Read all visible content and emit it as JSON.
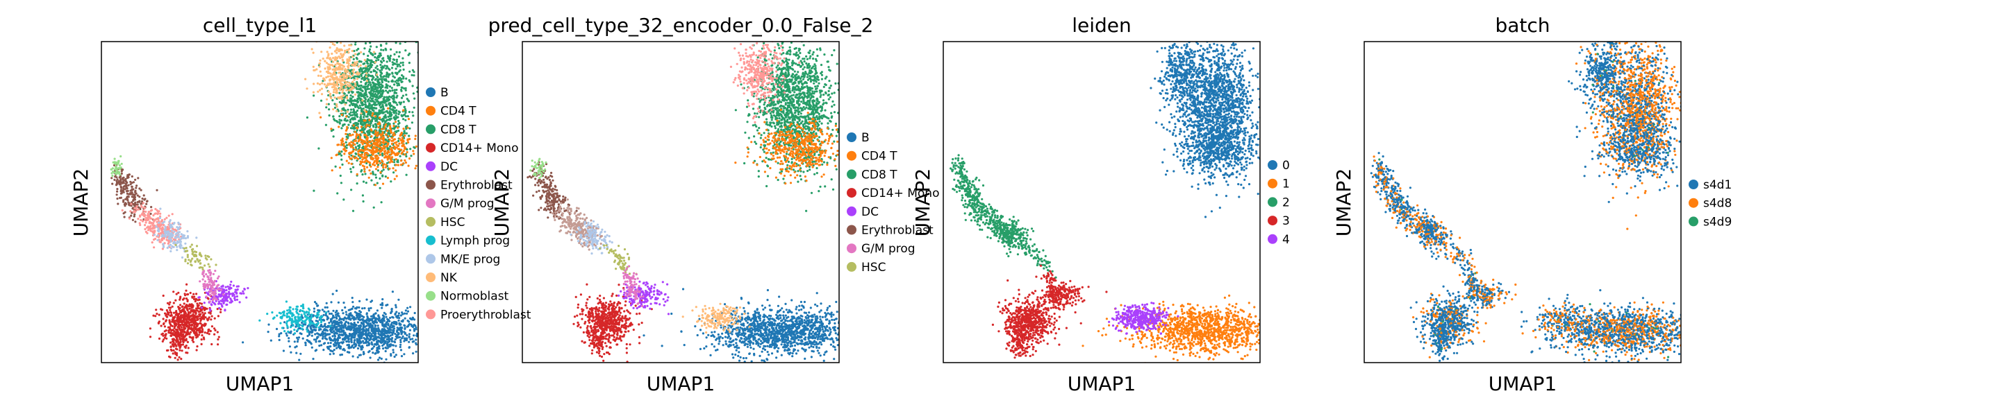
{
  "xlabel": "UMAP1",
  "ylabel": "UMAP2",
  "chart_data": [
    {
      "type": "scatter",
      "title": "cell_type_l1",
      "xlabel": "UMAP1",
      "ylabel": "UMAP2",
      "grid": false,
      "legend_position": "right",
      "x_ticks": [],
      "y_ticks": [],
      "series": [
        {
          "name": "B",
          "color": "#1f77b4"
        },
        {
          "name": "CD4 T",
          "color": "#ff7f0e"
        },
        {
          "name": "CD8 T",
          "color": "#279e68"
        },
        {
          "name": "CD14+ Mono",
          "color": "#d62728"
        },
        {
          "name": "DC",
          "color": "#aa40fc"
        },
        {
          "name": "Erythroblast",
          "color": "#8c564b"
        },
        {
          "name": "G/M prog",
          "color": "#e377c2"
        },
        {
          "name": "HSC",
          "color": "#b5bd61"
        },
        {
          "name": "Lymph prog",
          "color": "#17becf"
        },
        {
          "name": "MK/E prog",
          "color": "#aec7e8"
        },
        {
          "name": "NK",
          "color": "#ffbb78"
        },
        {
          "name": "Normoblast",
          "color": "#98df8a"
        },
        {
          "name": "Proerythroblast",
          "color": "#ff9896"
        }
      ]
    },
    {
      "type": "scatter",
      "title": "pred_cell_type_32_encoder_0.0_False_2",
      "xlabel": "UMAP1",
      "ylabel": "UMAP2",
      "grid": false,
      "legend_position": "right",
      "x_ticks": [],
      "y_ticks": [],
      "series": [
        {
          "name": "B",
          "color": "#1f77b4"
        },
        {
          "name": "CD4 T",
          "color": "#ff7f0e"
        },
        {
          "name": "CD8 T",
          "color": "#279e68"
        },
        {
          "name": "CD14+ Mono",
          "color": "#d62728"
        },
        {
          "name": "DC",
          "color": "#aa40fc"
        },
        {
          "name": "Erythroblast",
          "color": "#8c564b"
        },
        {
          "name": "G/M prog",
          "color": "#e377c2"
        },
        {
          "name": "HSC",
          "color": "#b5bd61"
        }
      ]
    },
    {
      "type": "scatter",
      "title": "leiden",
      "xlabel": "UMAP1",
      "ylabel": "UMAP2",
      "grid": false,
      "legend_position": "right",
      "x_ticks": [],
      "y_ticks": [],
      "series": [
        {
          "name": "0",
          "color": "#1f77b4"
        },
        {
          "name": "1",
          "color": "#ff7f0e"
        },
        {
          "name": "2",
          "color": "#279e68"
        },
        {
          "name": "3",
          "color": "#d62728"
        },
        {
          "name": "4",
          "color": "#aa40fc"
        }
      ]
    },
    {
      "type": "scatter",
      "title": "batch",
      "xlabel": "UMAP1",
      "ylabel": "UMAP2",
      "grid": false,
      "legend_position": "right",
      "x_ticks": [],
      "y_ticks": [],
      "series": [
        {
          "name": "s4d1",
          "color": "#1f77b4"
        },
        {
          "name": "s4d8",
          "color": "#ff7f0e"
        },
        {
          "name": "s4d9",
          "color": "#279e68"
        }
      ]
    }
  ]
}
